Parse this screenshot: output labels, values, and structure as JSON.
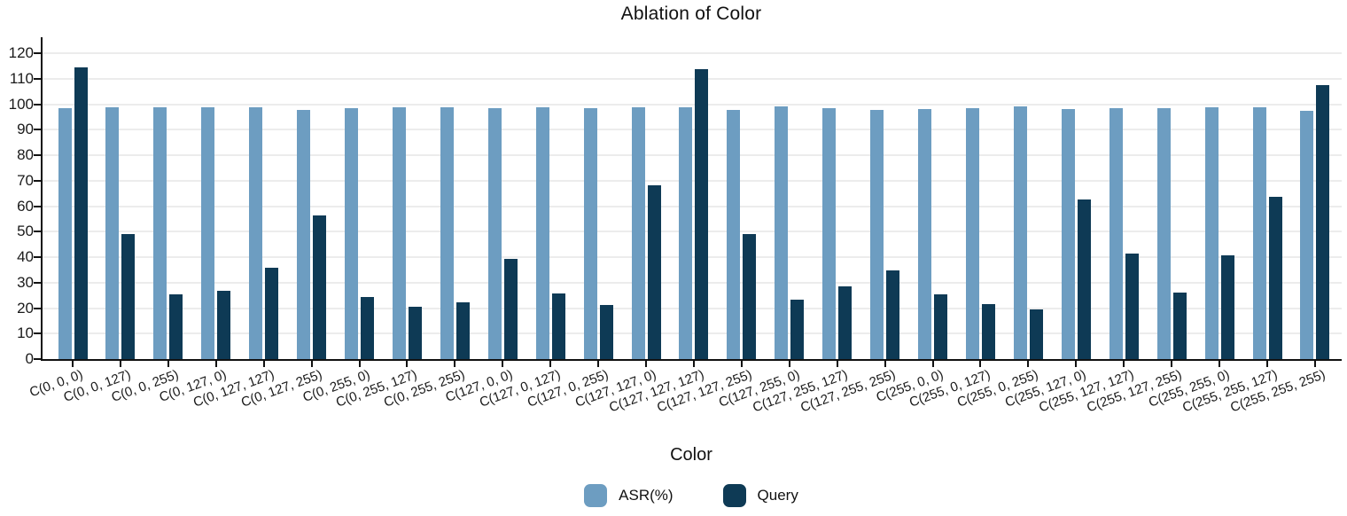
{
  "chart_data": {
    "type": "bar",
    "title": "Ablation of Color",
    "xlabel": "Color",
    "ylabel": "",
    "ylim": [
      0,
      126
    ],
    "yticks": [
      0,
      10,
      20,
      30,
      40,
      50,
      60,
      70,
      80,
      90,
      100,
      110,
      120
    ],
    "grid": true,
    "legend_position": "bottom",
    "categories": [
      "C(0, 0, 0)",
      "C(0, 0, 127)",
      "C(0, 0, 255)",
      "C(0, 127, 0)",
      "C(0, 127, 127)",
      "C(0, 127, 255)",
      "C(0, 255, 0)",
      "C(0, 255, 127)",
      "C(0, 255, 255)",
      "C(127, 0, 0)",
      "C(127, 0, 127)",
      "C(127, 0, 255)",
      "C(127, 127, 0)",
      "C(127, 127, 127)",
      "C(127, 127, 255)",
      "C(127, 255, 0)",
      "C(127, 255, 127)",
      "C(127, 255, 255)",
      "C(255, 0, 0)",
      "C(255, 0, 127)",
      "C(255, 0, 255)",
      "C(255, 127, 0)",
      "C(255, 127, 127)",
      "C(255, 127, 255)",
      "C(255, 255, 0)",
      "C(255, 255, 127)",
      "C(255, 255, 255)"
    ],
    "series": [
      {
        "name": "ASR(%)",
        "color": "#6d9dc1",
        "values": [
          98.3,
          98.9,
          98.9,
          98.9,
          98.9,
          97.7,
          98.6,
          98.9,
          98.9,
          98.5,
          98.9,
          98.3,
          98.8,
          98.9,
          97.9,
          99.2,
          98.5,
          97.8,
          98.1,
          98.5,
          99.2,
          98.1,
          98.5,
          98.5,
          98.9,
          98.9,
          97.5
        ]
      },
      {
        "name": "Query",
        "color": "#0e3a55",
        "values": [
          114.3,
          49.0,
          25.3,
          26.7,
          35.9,
          56.3,
          24.3,
          20.5,
          22.4,
          39.2,
          25.7,
          21.2,
          68.3,
          113.6,
          48.9,
          23.3,
          28.6,
          34.8,
          25.4,
          21.6,
          19.5,
          62.5,
          41.3,
          26.1,
          40.6,
          63.8,
          107.5
        ]
      }
    ]
  },
  "colors": {
    "background": "#ffffff",
    "gridline": "#ececec",
    "axis": "#111111",
    "text": "#1a1a1a",
    "asr_bar": "#6d9dc1",
    "query_bar": "#0e3a55"
  }
}
